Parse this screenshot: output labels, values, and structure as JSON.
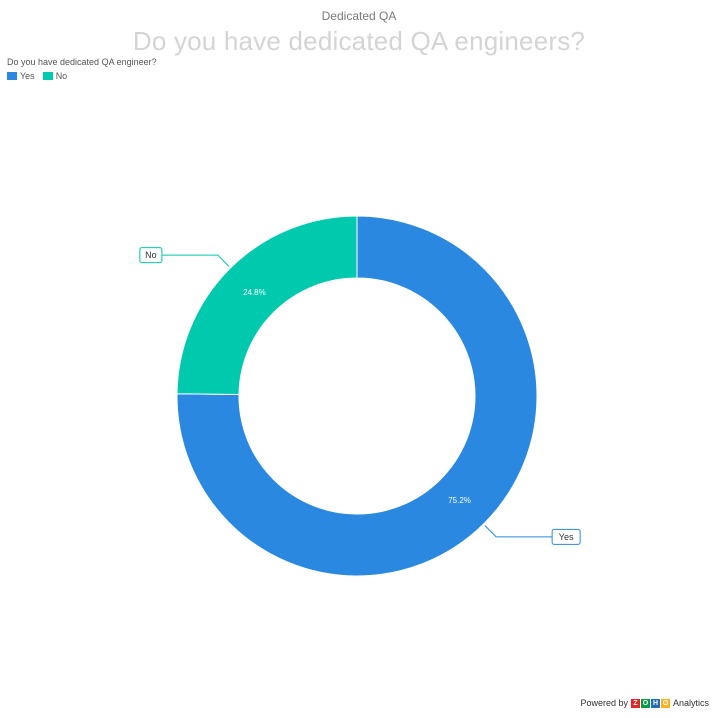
{
  "header": {
    "subtitle": "Dedicated QA",
    "title": "Do you have dedicated QA engineers?"
  },
  "legend": {
    "title": "Do you have dedicated QA engineer?",
    "items": [
      {
        "label": "Yes",
        "color": "#2a88e0"
      },
      {
        "label": "No",
        "color": "#00c9ad"
      }
    ]
  },
  "chart_data": {
    "type": "pie",
    "variant": "donut",
    "title": "Do you have dedicated QA engineers?",
    "subtitle": "Dedicated QA",
    "legend_title": "Do you have dedicated QA engineer?",
    "legend_position": "top-left",
    "slices": [
      {
        "label": "Yes",
        "value": 75.2,
        "display": "75.2%",
        "color": "#2a88e0"
      },
      {
        "label": "No",
        "value": 24.8,
        "display": "24.8%",
        "color": "#00c9ad"
      }
    ]
  },
  "footer": {
    "powered_by": "Powered by",
    "brand_letters": [
      "Z",
      "O",
      "H",
      "O"
    ],
    "brand_colors": [
      "#e42527",
      "#089949",
      "#226db4",
      "#f9b21d"
    ],
    "product": "Analytics"
  }
}
